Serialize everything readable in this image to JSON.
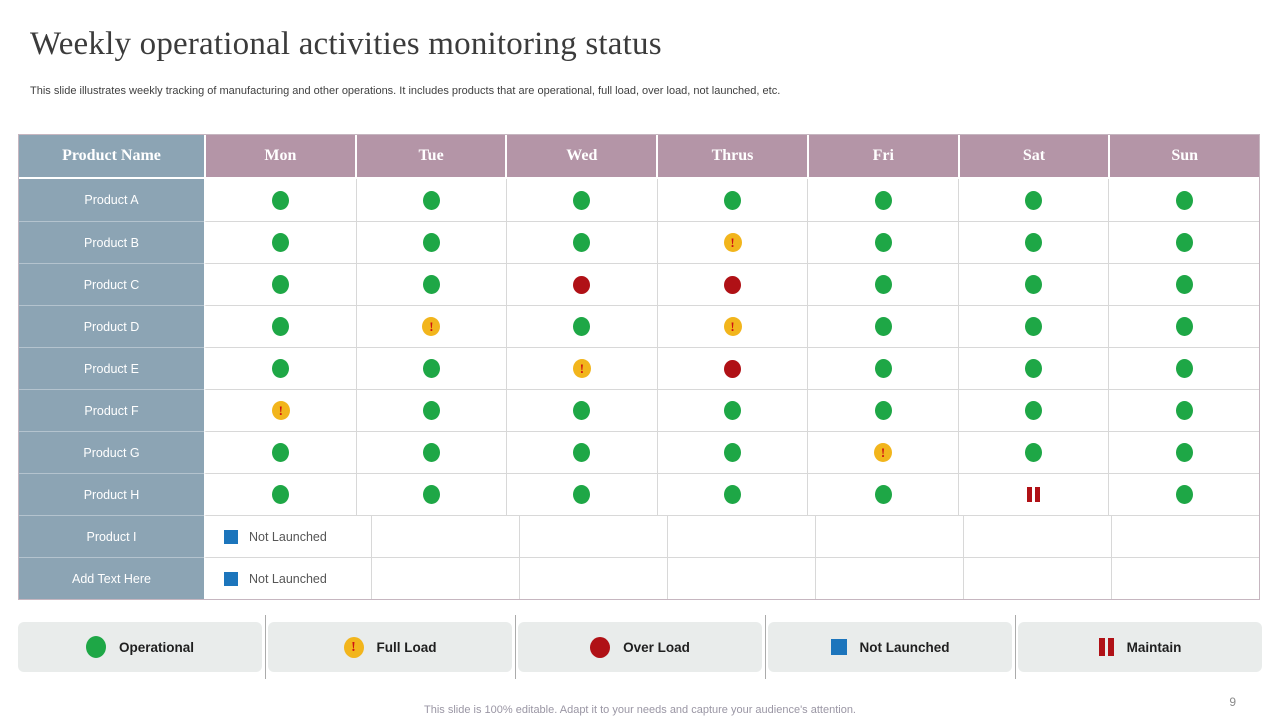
{
  "slide": {
    "title": "Weekly operational activities monitoring status",
    "subtitle": "This slide illustrates weekly tracking of manufacturing and other operations. It includes products that are operational, full load, over load, not launched, etc.",
    "footer": "This slide is 100% editable. Adapt it to your needs and capture your audience's attention.",
    "page_number": "9"
  },
  "statuses": {
    "operational": {
      "label": "Operational"
    },
    "full_load": {
      "label": "Full Load",
      "glyph": "!"
    },
    "over_load": {
      "label": "Over Load"
    },
    "not_launched": {
      "label": "Not Launched"
    },
    "maintain": {
      "label": "Maintain"
    }
  },
  "table": {
    "columns": [
      "Product Name",
      "Mon",
      "Tue",
      "Wed",
      "Thrus",
      "Fri",
      "Sat",
      "Sun"
    ],
    "rows": [
      {
        "label": "Product A",
        "cells": [
          "operational",
          "operational",
          "operational",
          "operational",
          "operational",
          "operational",
          "operational"
        ]
      },
      {
        "label": "Product B",
        "cells": [
          "operational",
          "operational",
          "operational",
          "full_load",
          "operational",
          "operational",
          "operational"
        ]
      },
      {
        "label": "Product C",
        "cells": [
          "operational",
          "operational",
          "over_load",
          "over_load",
          "operational",
          "operational",
          "operational"
        ]
      },
      {
        "label": "Product D",
        "cells": [
          "operational",
          "full_load",
          "operational",
          "full_load",
          "operational",
          "operational",
          "operational"
        ]
      },
      {
        "label": "Product E",
        "cells": [
          "operational",
          "operational",
          "full_load",
          "over_load",
          "operational",
          "operational",
          "operational"
        ]
      },
      {
        "label": "Product F",
        "cells": [
          "full_load",
          "operational",
          "operational",
          "operational",
          "operational",
          "operational",
          "operational"
        ]
      },
      {
        "label": "Product G",
        "cells": [
          "operational",
          "operational",
          "operational",
          "operational",
          "full_load",
          "operational",
          "operational"
        ]
      },
      {
        "label": "Product H",
        "cells": [
          "operational",
          "operational",
          "operational",
          "operational",
          "operational",
          "maintain",
          "operational"
        ]
      },
      {
        "label": "Product I",
        "cells": [
          "not_launched",
          "",
          "",
          "",
          "",
          "",
          ""
        ]
      },
      {
        "label": "Add Text Here",
        "cells": [
          "not_launched",
          "",
          "",
          "",
          "",
          "",
          ""
        ]
      }
    ]
  },
  "legend": {
    "items": [
      {
        "type": "operational",
        "label": "Operational"
      },
      {
        "type": "full_load",
        "label": "Full Load"
      },
      {
        "type": "over_load",
        "label": "Over Load"
      },
      {
        "type": "not_launched",
        "label": "Not Launched"
      },
      {
        "type": "maintain",
        "label": "Maintain"
      }
    ]
  },
  "colors": {
    "header_label_bg": "#8ca4b4",
    "header_day_bg": "#b495a7",
    "row_label_bg": "#8ca4b4",
    "operational": "#1ea746",
    "full_load": "#f2b51c",
    "full_load_mark": "#cf1113",
    "over_load": "#b01116",
    "not_launched": "#1c75bc",
    "maintain": "#b01116",
    "legend_bg": "#e9eceb",
    "grid_line": "#d8d8d8"
  }
}
